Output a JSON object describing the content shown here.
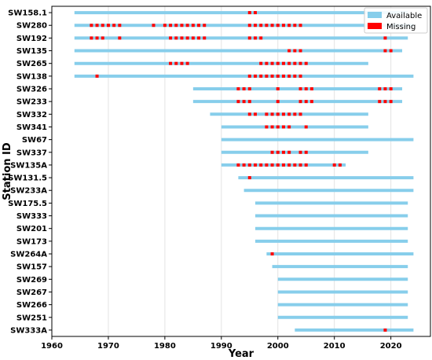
{
  "chart_data": {
    "type": "bar",
    "orientation": "horizontal-timeline",
    "xlabel": "Year",
    "ylabel": "Station ID",
    "xlim": [
      1960,
      2027
    ],
    "xticks": [
      1960,
      1970,
      1980,
      1990,
      2000,
      2010,
      2020
    ],
    "grid": "vertical",
    "legend_placement": "top-right",
    "colors": {
      "available": "#87ceeb",
      "missing": "#ff0000"
    },
    "legend": [
      {
        "key": "available",
        "label": "Available"
      },
      {
        "key": "missing",
        "label": "Missing"
      }
    ],
    "stations": [
      {
        "id": "SW158.1",
        "start": 1964,
        "end": 2023,
        "missing": [
          1995,
          1996
        ]
      },
      {
        "id": "SW280",
        "start": 1964,
        "end": 2024,
        "missing": [
          1967,
          1968,
          1969,
          1970,
          1971,
          1972,
          1978,
          1980,
          1981,
          1982,
          1983,
          1984,
          1985,
          1986,
          1987,
          1995,
          1996,
          1997,
          1998,
          1999,
          2000,
          2001,
          2002,
          2003,
          2004
        ]
      },
      {
        "id": "SW192",
        "start": 1964,
        "end": 2023,
        "missing": [
          1967,
          1968,
          1969,
          1972,
          1981,
          1982,
          1983,
          1984,
          1985,
          1986,
          1987,
          1995,
          1996,
          1997,
          2019
        ]
      },
      {
        "id": "SW135",
        "start": 1964,
        "end": 2022,
        "missing": [
          2002,
          2003,
          2004,
          2019,
          2020
        ]
      },
      {
        "id": "SW265",
        "start": 1964,
        "end": 2016,
        "missing": [
          1981,
          1982,
          1983,
          1984,
          1997,
          1998,
          1999,
          2000,
          2001,
          2002,
          2003,
          2004,
          2005
        ]
      },
      {
        "id": "SW138",
        "start": 1964,
        "end": 2024,
        "missing": [
          1968,
          1995,
          1996,
          1997,
          1998,
          1999,
          2000,
          2001,
          2002,
          2003,
          2004
        ]
      },
      {
        "id": "SW326",
        "start": 1985,
        "end": 2022,
        "missing": [
          1993,
          1994,
          1995,
          2000,
          2004,
          2005,
          2006,
          2018,
          2019,
          2020
        ]
      },
      {
        "id": "SW233",
        "start": 1985,
        "end": 2022,
        "missing": [
          1993,
          1994,
          1995,
          2000,
          2004,
          2005,
          2006,
          2018,
          2019,
          2020
        ]
      },
      {
        "id": "SW332",
        "start": 1988,
        "end": 2016,
        "missing": [
          1995,
          1996,
          1998,
          1999,
          2000,
          2001,
          2002,
          2003,
          2004
        ]
      },
      {
        "id": "SW341",
        "start": 1990,
        "end": 2016,
        "missing": [
          1998,
          1999,
          2000,
          2001,
          2002,
          2005
        ]
      },
      {
        "id": "SW67",
        "start": 1990,
        "end": 2024,
        "missing": []
      },
      {
        "id": "SW337",
        "start": 1990,
        "end": 2016,
        "missing": [
          1999,
          2000,
          2001,
          2002,
          2004,
          2005
        ]
      },
      {
        "id": "SW135A",
        "start": 1990,
        "end": 2012,
        "missing": [
          1993,
          1994,
          1995,
          1996,
          1997,
          1998,
          1999,
          2000,
          2001,
          2002,
          2003,
          2004,
          2005,
          2010,
          2011
        ]
      },
      {
        "id": "SW131.5",
        "start": 1993,
        "end": 2024,
        "missing": [
          1995
        ]
      },
      {
        "id": "SW233A",
        "start": 1994,
        "end": 2024,
        "missing": []
      },
      {
        "id": "SW175.5",
        "start": 1996,
        "end": 2023,
        "missing": []
      },
      {
        "id": "SW333",
        "start": 1996,
        "end": 2023,
        "missing": []
      },
      {
        "id": "SW201",
        "start": 1996,
        "end": 2023,
        "missing": []
      },
      {
        "id": "SW173",
        "start": 1996,
        "end": 2023,
        "missing": []
      },
      {
        "id": "SW264A",
        "start": 1998,
        "end": 2024,
        "missing": [
          1999
        ]
      },
      {
        "id": "SW157",
        "start": 1999,
        "end": 2023,
        "missing": []
      },
      {
        "id": "SW269",
        "start": 2000,
        "end": 2023,
        "missing": []
      },
      {
        "id": "SW267",
        "start": 2000,
        "end": 2023,
        "missing": []
      },
      {
        "id": "SW266",
        "start": 2000,
        "end": 2023,
        "missing": []
      },
      {
        "id": "SW251",
        "start": 2000,
        "end": 2023,
        "missing": []
      },
      {
        "id": "SW333A",
        "start": 2003,
        "end": 2024,
        "missing": [
          2019
        ]
      }
    ]
  }
}
